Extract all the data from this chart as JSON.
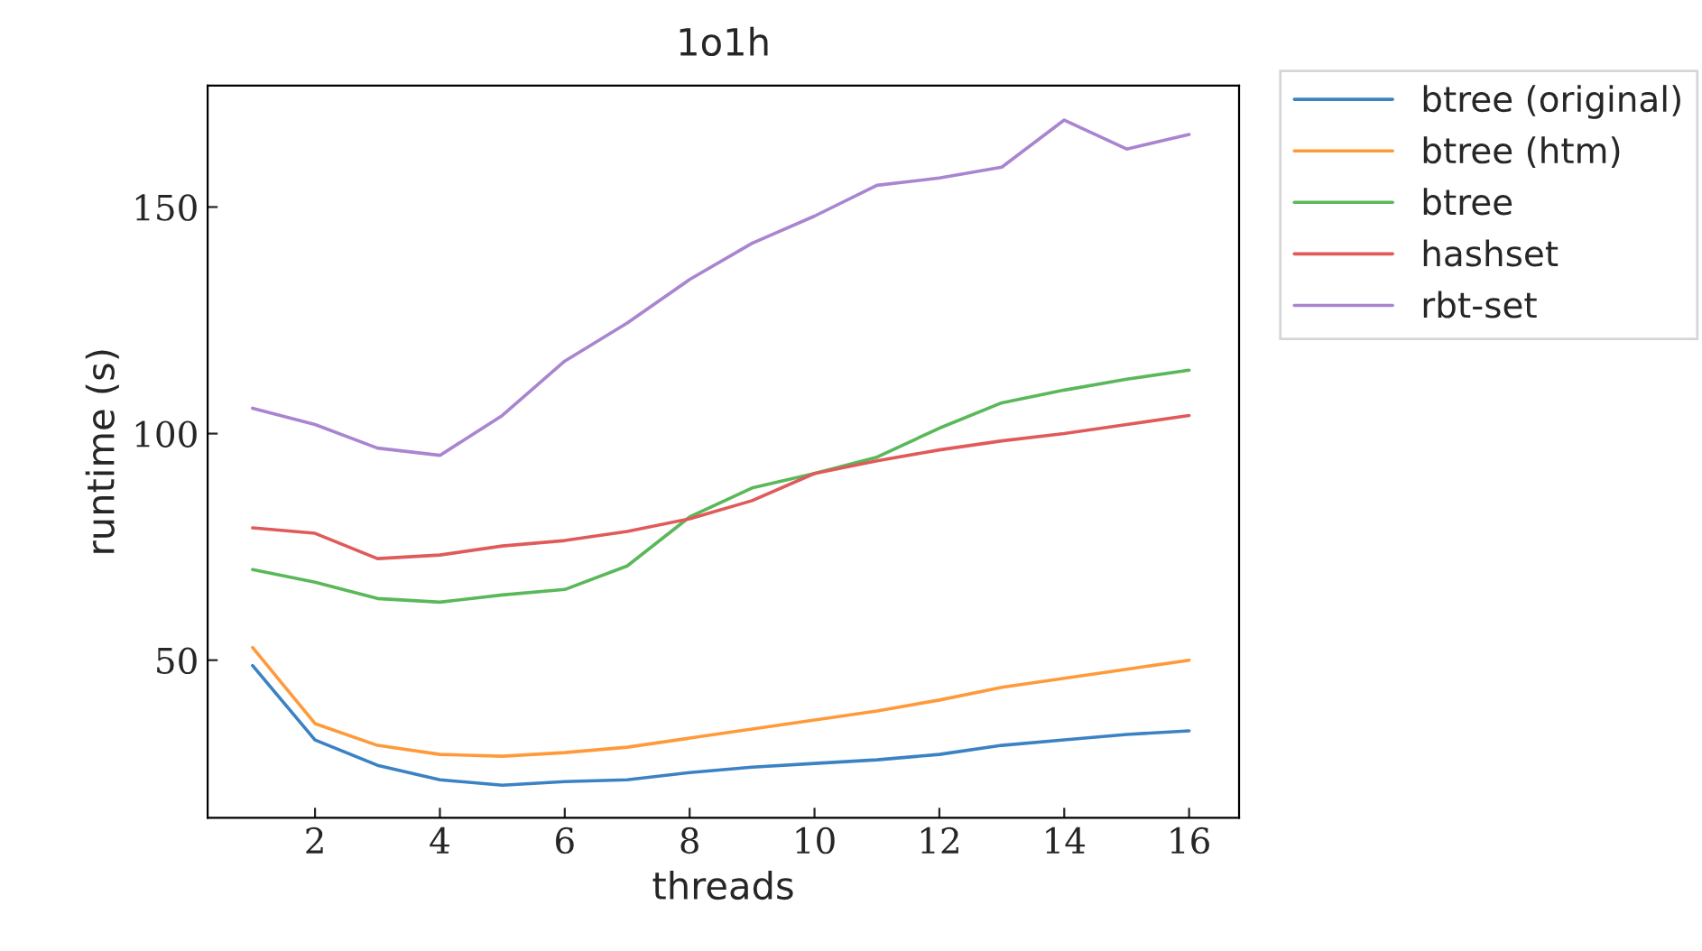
{
  "chart_data": {
    "type": "line",
    "title": "1o1h",
    "xlabel": "threads",
    "ylabel": "runtime (s)",
    "x": [
      1,
      2,
      3,
      4,
      5,
      6,
      7,
      8,
      9,
      10,
      11,
      12,
      13,
      14,
      15,
      16
    ],
    "xlim": [
      0.28,
      16.8
    ],
    "ylim": [
      15.2,
      176.8
    ],
    "xticks": [
      2,
      4,
      6,
      8,
      10,
      12,
      14,
      16
    ],
    "yticks": [
      50,
      100,
      150
    ],
    "grid": false,
    "legend": "right",
    "marker": "none",
    "line_style": "solid",
    "series": [
      {
        "name": "btree (original)",
        "color": "#3b82c4",
        "values": [
          48.8,
          32.4,
          26.8,
          23.6,
          22.4,
          23.2,
          23.6,
          25.2,
          26.4,
          27.2,
          28,
          29.2,
          31.2,
          32.4,
          33.6,
          34.4
        ]
      },
      {
        "name": "btree (htm)",
        "color": "#ff9a3a",
        "values": [
          52.8,
          36,
          31.2,
          29.2,
          28.8,
          29.6,
          30.8,
          32.8,
          34.8,
          36.8,
          38.8,
          41.2,
          44,
          46,
          48,
          50
        ]
      },
      {
        "name": "btree",
        "color": "#5ab85a",
        "values": [
          70,
          67.2,
          63.6,
          62.8,
          64.4,
          65.6,
          70.8,
          81.6,
          88,
          91.2,
          94.8,
          101.2,
          106.8,
          109.6,
          112,
          114
        ]
      },
      {
        "name": "hashset",
        "color": "#e05a5a",
        "values": [
          79.2,
          78,
          72.4,
          73.2,
          75.2,
          76.4,
          78.4,
          81.2,
          85.2,
          91.2,
          94,
          96.4,
          98.4,
          100,
          102,
          104
        ]
      },
      {
        "name": "rbt-set",
        "color": "#a985d0",
        "values": [
          105.6,
          102,
          96.8,
          95.2,
          104,
          116,
          124.4,
          134,
          142,
          148,
          154.8,
          156.4,
          158.8,
          169.2,
          162.8,
          166
        ]
      }
    ]
  }
}
